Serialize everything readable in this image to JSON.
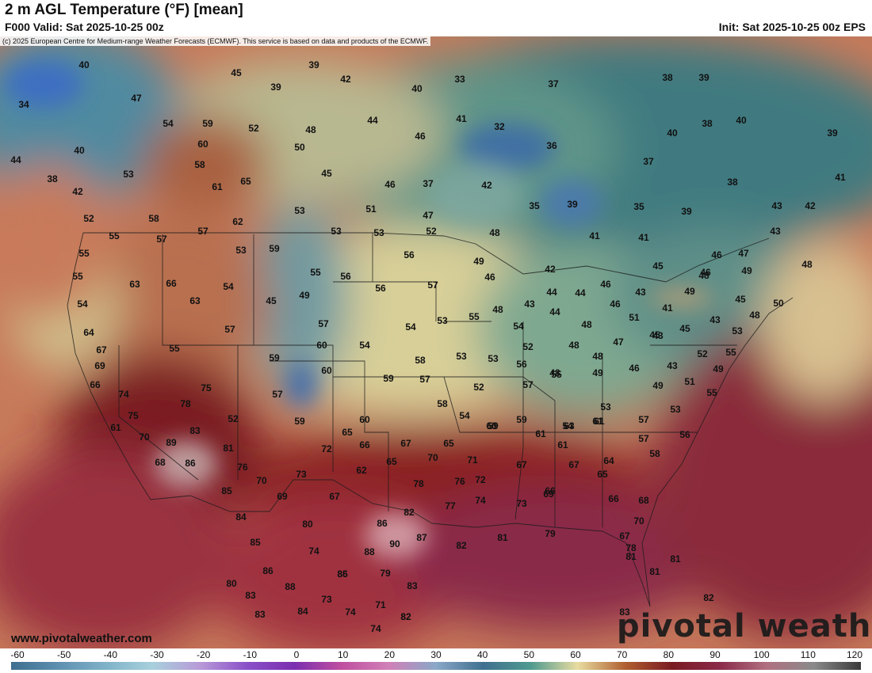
{
  "header": {
    "title": "2 m AGL Temperature (°F) [mean]",
    "valid": "F000 Valid: Sat 2025-10-25 00z",
    "init": "Init: Sat 2025-10-25 00z EPS"
  },
  "map": {
    "copyright": "(c) 2025 European Centre for Medium-range Weather Forecasts (ECMWF). This service is based on data and products of the ECMWF.",
    "website": "www.pivotalweather.com",
    "logo": "pivotal weather"
  },
  "legend": {
    "ticks": [
      "-60",
      "-50",
      "-40",
      "-30",
      "-20",
      "-10",
      "0",
      "10",
      "20",
      "30",
      "40",
      "50",
      "60",
      "70",
      "80",
      "90",
      "100",
      "110",
      "120"
    ],
    "colors": [
      "#3f6f8f",
      "#5f8fb0",
      "#7fb2c8",
      "#a8d0dc",
      "#b89ad8",
      "#8a4fc8",
      "#7a2fb0",
      "#c04fa0",
      "#d080b8",
      "#8aa8c8",
      "#3f6f8f",
      "#4f9a90",
      "#e8dca0",
      "#b06030",
      "#7a1a22",
      "#8a2a4a",
      "#b07080",
      "#8a8a8a",
      "#3a3a3a"
    ]
  },
  "temperatures": [
    {
      "v": "40"
    },
    {
      "v": "39"
    },
    {
      "v": "45"
    },
    {
      "v": "42"
    },
    {
      "v": "33"
    },
    {
      "v": "37"
    },
    {
      "v": "38"
    },
    {
      "v": "39"
    },
    {
      "v": "34"
    },
    {
      "v": "47"
    },
    {
      "v": "40"
    },
    {
      "v": "39"
    },
    {
      "v": "54"
    },
    {
      "v": "59"
    },
    {
      "v": "52"
    },
    {
      "v": "48"
    },
    {
      "v": "44"
    },
    {
      "v": "41"
    },
    {
      "v": "32"
    },
    {
      "v": "40"
    },
    {
      "v": "38"
    },
    {
      "v": "40"
    },
    {
      "v": "39"
    },
    {
      "v": "40"
    },
    {
      "v": "60"
    },
    {
      "v": "50"
    },
    {
      "v": "46"
    },
    {
      "v": "36"
    },
    {
      "v": "37"
    },
    {
      "v": "44"
    },
    {
      "v": "53"
    },
    {
      "v": "58"
    },
    {
      "v": "45"
    },
    {
      "v": "37"
    },
    {
      "v": "41"
    },
    {
      "v": "38"
    },
    {
      "v": "61"
    },
    {
      "v": "65"
    },
    {
      "v": "46"
    },
    {
      "v": "42"
    },
    {
      "v": "38"
    },
    {
      "v": "42"
    },
    {
      "v": "51"
    },
    {
      "v": "47"
    },
    {
      "v": "35"
    },
    {
      "v": "39"
    },
    {
      "v": "35"
    },
    {
      "v": "39"
    },
    {
      "v": "43"
    },
    {
      "v": "42"
    },
    {
      "v": "52"
    },
    {
      "v": "58"
    },
    {
      "v": "62"
    },
    {
      "v": "53"
    },
    {
      "v": "55"
    },
    {
      "v": "57"
    },
    {
      "v": "57"
    },
    {
      "v": "53"
    },
    {
      "v": "53"
    },
    {
      "v": "52"
    },
    {
      "v": "48"
    },
    {
      "v": "41"
    },
    {
      "v": "41"
    },
    {
      "v": "43"
    },
    {
      "v": "55"
    },
    {
      "v": "53"
    },
    {
      "v": "59"
    },
    {
      "v": "56"
    },
    {
      "v": "49"
    },
    {
      "v": "42"
    },
    {
      "v": "46"
    },
    {
      "v": "47"
    },
    {
      "v": "55"
    },
    {
      "v": "63"
    },
    {
      "v": "66"
    },
    {
      "v": "54"
    },
    {
      "v": "55"
    },
    {
      "v": "56"
    },
    {
      "v": "56"
    },
    {
      "v": "46"
    },
    {
      "v": "45"
    },
    {
      "v": "48"
    },
    {
      "v": "49"
    },
    {
      "v": "46"
    },
    {
      "v": "48"
    },
    {
      "v": "54"
    },
    {
      "v": "63"
    },
    {
      "v": "45"
    },
    {
      "v": "49"
    },
    {
      "v": "57"
    },
    {
      "v": "44"
    },
    {
      "v": "44"
    },
    {
      "v": "46"
    },
    {
      "v": "43"
    },
    {
      "v": "49"
    },
    {
      "v": "45"
    },
    {
      "v": "50"
    },
    {
      "v": "57"
    },
    {
      "v": "48"
    },
    {
      "v": "43"
    },
    {
      "v": "44"
    },
    {
      "v": "46"
    },
    {
      "v": "41"
    },
    {
      "v": "51"
    },
    {
      "v": "48"
    },
    {
      "v": "64"
    },
    {
      "v": "57"
    },
    {
      "v": "54"
    },
    {
      "v": "53"
    },
    {
      "v": "55"
    },
    {
      "v": "54"
    },
    {
      "v": "48"
    },
    {
      "v": "43"
    },
    {
      "v": "45"
    },
    {
      "v": "43"
    },
    {
      "v": "53"
    },
    {
      "v": "67"
    },
    {
      "v": "55"
    },
    {
      "v": "60"
    },
    {
      "v": "54"
    },
    {
      "v": "52"
    },
    {
      "v": "48"
    },
    {
      "v": "47"
    },
    {
      "v": "45"
    },
    {
      "v": "55"
    },
    {
      "v": "69"
    },
    {
      "v": "59"
    },
    {
      "v": "60"
    },
    {
      "v": "58"
    },
    {
      "v": "53"
    },
    {
      "v": "53"
    },
    {
      "v": "56"
    },
    {
      "v": "48"
    },
    {
      "v": "46"
    },
    {
      "v": "43"
    },
    {
      "v": "52"
    },
    {
      "v": "66"
    },
    {
      "v": "59"
    },
    {
      "v": "57"
    },
    {
      "v": "52"
    },
    {
      "v": "57"
    },
    {
      "v": "55"
    },
    {
      "v": "49"
    },
    {
      "v": "49"
    },
    {
      "v": "51"
    },
    {
      "v": "49"
    },
    {
      "v": "74"
    },
    {
      "v": "75"
    },
    {
      "v": "57"
    },
    {
      "v": "48"
    },
    {
      "v": "55"
    },
    {
      "v": "75"
    },
    {
      "v": "78"
    },
    {
      "v": "52"
    },
    {
      "v": "60"
    },
    {
      "v": "58"
    },
    {
      "v": "54"
    },
    {
      "v": "59"
    },
    {
      "v": "54"
    },
    {
      "v": "53"
    },
    {
      "v": "53"
    },
    {
      "v": "61"
    },
    {
      "v": "83"
    },
    {
      "v": "59"
    },
    {
      "v": "60"
    },
    {
      "v": "57"
    },
    {
      "v": "56"
    },
    {
      "v": "70"
    },
    {
      "v": "89"
    },
    {
      "v": "65"
    },
    {
      "v": "59"
    },
    {
      "v": "61"
    },
    {
      "v": "63"
    },
    {
      "v": "61"
    },
    {
      "v": "57"
    },
    {
      "v": "81"
    },
    {
      "v": "72"
    },
    {
      "v": "66"
    },
    {
      "v": "67"
    },
    {
      "v": "65"
    },
    {
      "v": "61"
    },
    {
      "v": "61"
    },
    {
      "v": "68"
    },
    {
      "v": "86"
    },
    {
      "v": "76"
    },
    {
      "v": "65"
    },
    {
      "v": "70"
    },
    {
      "v": "71"
    },
    {
      "v": "67"
    },
    {
      "v": "67"
    },
    {
      "v": "64"
    },
    {
      "v": "58"
    },
    {
      "v": "85"
    },
    {
      "v": "70"
    },
    {
      "v": "73"
    },
    {
      "v": "62"
    },
    {
      "v": "76"
    },
    {
      "v": "72"
    },
    {
      "v": "66"
    },
    {
      "v": "65"
    },
    {
      "v": "69"
    },
    {
      "v": "67"
    },
    {
      "v": "78"
    },
    {
      "v": "74"
    },
    {
      "v": "69"
    },
    {
      "v": "66"
    },
    {
      "v": "84"
    },
    {
      "v": "82"
    },
    {
      "v": "77"
    },
    {
      "v": "73"
    },
    {
      "v": "68"
    },
    {
      "v": "80"
    },
    {
      "v": "86"
    },
    {
      "v": "70"
    },
    {
      "v": "85"
    },
    {
      "v": "90"
    },
    {
      "v": "87"
    },
    {
      "v": "82"
    },
    {
      "v": "81"
    },
    {
      "v": "79"
    },
    {
      "v": "67"
    },
    {
      "v": "78"
    },
    {
      "v": "74"
    },
    {
      "v": "88"
    },
    {
      "v": "81"
    },
    {
      "v": "81"
    },
    {
      "v": "86"
    },
    {
      "v": "85"
    },
    {
      "v": "81"
    },
    {
      "v": "80"
    },
    {
      "v": "88"
    },
    {
      "v": "86"
    },
    {
      "v": "79"
    },
    {
      "v": "83"
    },
    {
      "v": "82"
    },
    {
      "v": "83"
    },
    {
      "v": "73"
    },
    {
      "v": "71"
    },
    {
      "v": "82"
    },
    {
      "v": "83"
    },
    {
      "v": "84"
    },
    {
      "v": "74"
    },
    {
      "v": "82"
    },
    {
      "v": "83"
    },
    {
      "v": "74"
    }
  ]
}
